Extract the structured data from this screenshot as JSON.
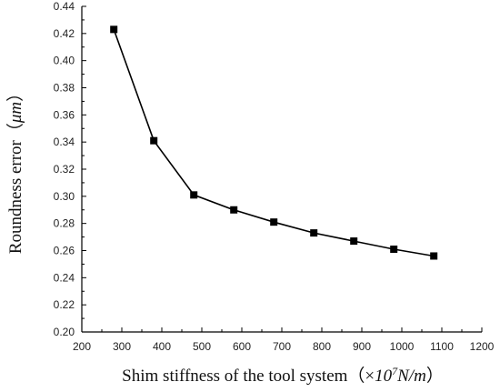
{
  "chart_data": {
    "type": "line",
    "title": "",
    "xlabel": {
      "text": "Shim stiffness of the tool system",
      "unit_open": "（×",
      "unit_base": "10",
      "unit_exp": "7",
      "unit_rest": "N/m",
      "unit_close": "）"
    },
    "ylabel": {
      "text": "Roundness error",
      "unit_open": "（",
      "unit_main": "μm",
      "unit_close": "）"
    },
    "xlim": [
      200,
      1200
    ],
    "ylim": [
      0.2,
      0.44
    ],
    "xticks": [
      "200",
      "300",
      "400",
      "500",
      "600",
      "700",
      "800",
      "900",
      "1000",
      "1100",
      "1200"
    ],
    "yticks": [
      "0.20",
      "0.22",
      "0.24",
      "0.26",
      "0.28",
      "0.30",
      "0.32",
      "0.34",
      "0.36",
      "0.38",
      "0.40",
      "0.42",
      "0.44"
    ],
    "grid": false,
    "marker": "square",
    "series": [
      {
        "color": "#000000",
        "x": [
          280,
          380,
          480,
          580,
          680,
          780,
          880,
          980,
          1080
        ],
        "y": [
          0.423,
          0.341,
          0.301,
          0.29,
          0.281,
          0.273,
          0.267,
          0.261,
          0.256
        ]
      }
    ]
  }
}
